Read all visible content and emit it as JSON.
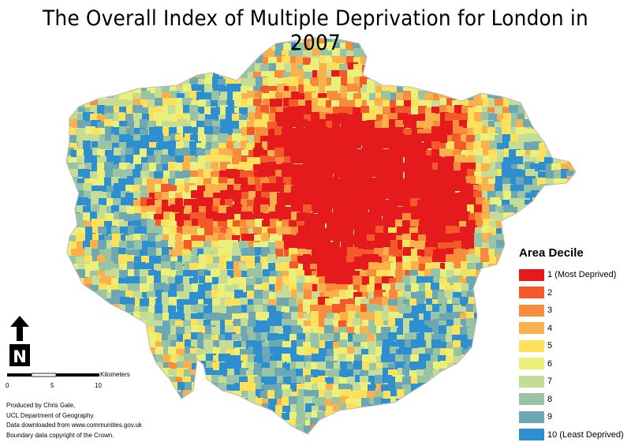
{
  "title": "The Overall Index of Multiple Deprivation for London in 2007",
  "legend": {
    "title": "Area Decile",
    "items": [
      {
        "label": "1 (Most Deprived)",
        "color": "#e41a1c"
      },
      {
        "label": "2",
        "color": "#f4592a"
      },
      {
        "label": "3",
        "color": "#f88c3c"
      },
      {
        "label": "4",
        "color": "#fbb04b"
      },
      {
        "label": "5",
        "color": "#fde15a"
      },
      {
        "label": "6",
        "color": "#eaf07a"
      },
      {
        "label": "7",
        "color": "#c5dc97"
      },
      {
        "label": "8",
        "color": "#98c3a4"
      },
      {
        "label": "9",
        "color": "#6ba8b4"
      },
      {
        "label": "10 (Least Deprived)",
        "color": "#2d8fd0"
      }
    ]
  },
  "north_arrow": {
    "label": "N"
  },
  "scale_bar": {
    "unit": "Kilometers",
    "ticks": [
      "0",
      "5",
      "10"
    ]
  },
  "credits": [
    "Produced by Chris Gale,",
    "UCL Department of Geography.",
    "Data downloaded from www.communities.gov.uk",
    "Boundary data copyright of the Crown."
  ]
}
